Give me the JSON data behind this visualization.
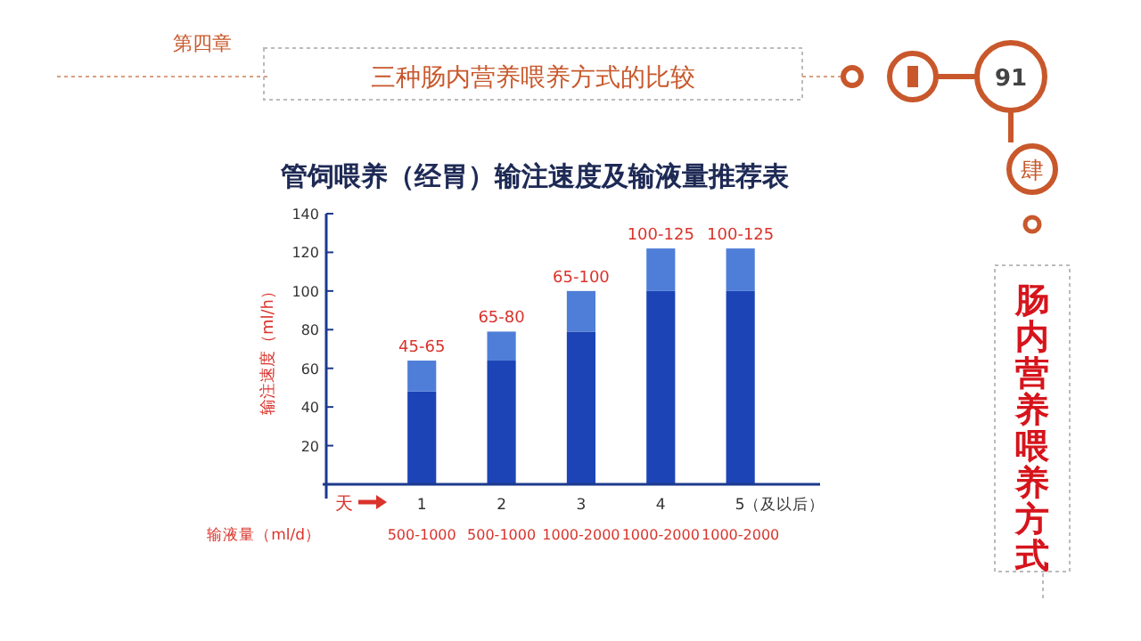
{
  "chart_data": {
    "type": "bar",
    "title": "管饲喂养（经胃）输注速度及输液量推荐表",
    "ylabel": "输注速度（ml/h）",
    "stacked": true,
    "categories": [
      "1",
      "2",
      "3",
      "4",
      "5（及以后）"
    ],
    "series": [
      {
        "color": "#1c44b6",
        "values": [
          48,
          64,
          79,
          100,
          100
        ]
      },
      {
        "color": "#4f7ed8",
        "values": [
          16,
          15,
          21,
          22,
          22
        ],
        "value_labels": [
          "45-65",
          "65-80",
          "65-100",
          "100-125",
          "100-125"
        ]
      }
    ],
    "ylim": [
      0,
      140
    ],
    "yticks": [
      20,
      40,
      60,
      80,
      100,
      120,
      140
    ],
    "grid": false,
    "annotations": [
      "第四章",
      "三种肠内营养喂养方式的比较",
      "91",
      "肆",
      "肠内营养喂养方式",
      "天",
      "输液量（ml/d）",
      "500-1000",
      "500-1000",
      "1000-2000",
      "1000-2000",
      "1000-2000"
    ]
  }
}
